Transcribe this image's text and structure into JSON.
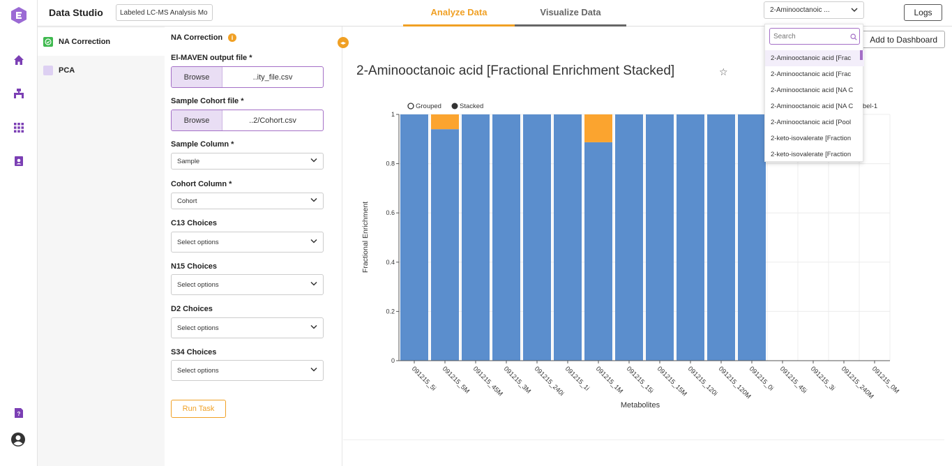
{
  "rail": {
    "icons": [
      "app-logo-icon",
      "home-icon",
      "workflow-icon",
      "grid-icon",
      "contacts-icon",
      "help-icon",
      "user-icon"
    ]
  },
  "header": {
    "brand": "Data Studio",
    "project_name": "Labeled LC-MS Analysis Mo",
    "tabs": [
      {
        "label": "Analyze Data",
        "active": true
      },
      {
        "label": "Visualize Data",
        "active": false
      }
    ],
    "plot_select": "2-Aminooctanoic ...",
    "logs_label": "Logs"
  },
  "sidebar": {
    "items": [
      {
        "label": "NA Correction",
        "checked": true
      },
      {
        "label": "PCA",
        "checked": false
      }
    ]
  },
  "form": {
    "title": "NA Correction",
    "elmaven_label": "El-MAVEN output file *",
    "elmaven_browse": "Browse",
    "elmaven_file": "..ity_file.csv",
    "cohort_file_label": "Sample Cohort file *",
    "cohort_browse": "Browse",
    "cohort_file": "..2/Cohort.csv",
    "sample_col_label": "Sample Column *",
    "sample_col_value": "Sample",
    "cohort_col_label": "Cohort Column *",
    "cohort_col_value": "Cohort",
    "c13_label": "C13 Choices",
    "n15_label": "N15 Choices",
    "d2_label": "D2 Choices",
    "s34_label": "S34 Choices",
    "select_placeholder": "Select options",
    "run_label": "Run Task"
  },
  "main": {
    "add_dashboard": "Add to Dashboard",
    "chart_title": "2-Aminooctanoic acid [Fractional Enrichment Stacked]",
    "overflow_text": "bel-1"
  },
  "dropdown": {
    "search_placeholder": "Search",
    "items": [
      "2-Aminooctanoic acid [Frac",
      "2-Aminooctanoic acid [Frac",
      "2-Aminooctanoic acid [NA C",
      "2-Aminooctanoic acid [NA C",
      "2-Aminooctanoic acid [Pool",
      "2-keto-isovalerate [Fraction",
      "2-keto-isovalerate [Fraction"
    ]
  },
  "chart_data": {
    "type": "bar",
    "stacked": true,
    "legend": [
      "Grouped",
      "Stacked"
    ],
    "legend_selected": "Stacked",
    "xlabel": "Metabolites",
    "ylabel": "Fractional Enrichment",
    "ylim": [
      0,
      1
    ],
    "yticks": [
      "0",
      "0.2",
      "0.4",
      "0.6",
      "0.8",
      "1"
    ],
    "grid": true,
    "categories": [
      "091215_5i",
      "091215_5M",
      "091215_45M",
      "091215_3M",
      "091215_240i",
      "091215_1i",
      "091215_1M",
      "091215_15i",
      "091215_15M",
      "091215_120i",
      "091215_120M",
      "091215_0i",
      "091215_45i",
      "091215_3i",
      "091215_240M",
      "091215_0M"
    ],
    "series": [
      {
        "color": "#5b8ecd",
        "values": [
          1,
          0.94,
          1,
          1,
          1,
          1,
          0.887,
          1,
          1,
          1,
          1,
          1,
          0,
          0,
          0,
          0
        ]
      },
      {
        "color": "#fba42f",
        "values": [
          0,
          0.06,
          0,
          0,
          0,
          0,
          0.113,
          0,
          0,
          0,
          0,
          0,
          0,
          0,
          0,
          0
        ]
      }
    ]
  }
}
